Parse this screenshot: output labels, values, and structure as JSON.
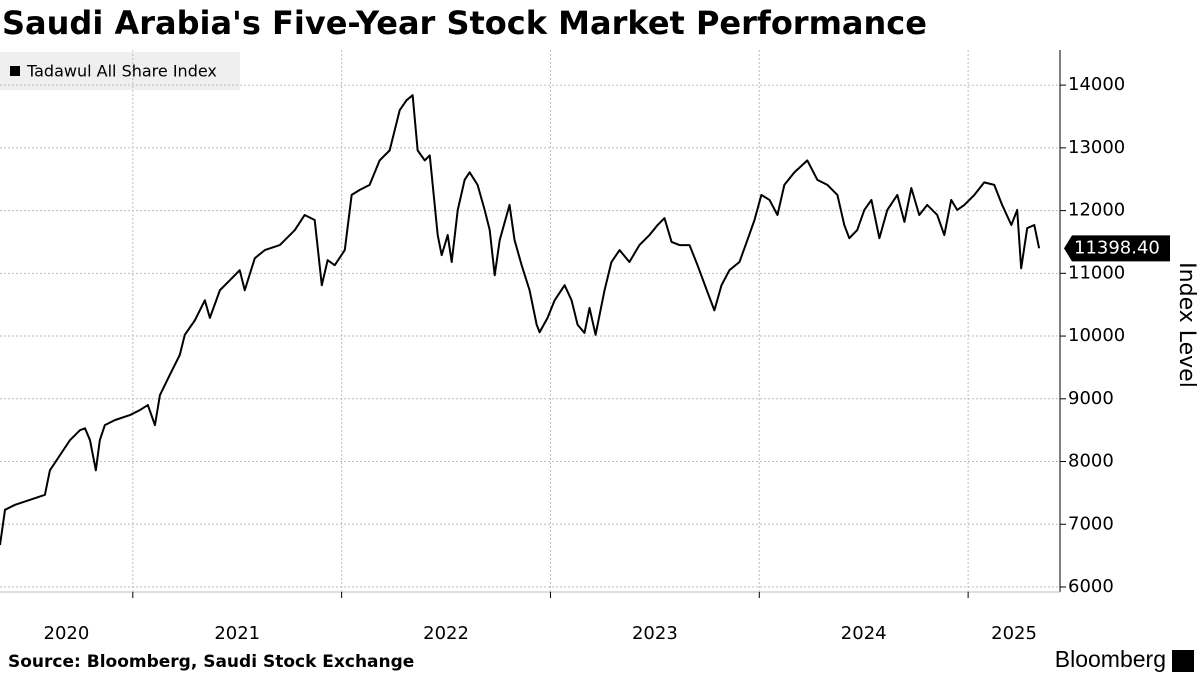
{
  "chart_data": {
    "type": "line",
    "title": "Saudi Arabia's Five-Year Stock Market Performance",
    "y_axis_label": "Index Level",
    "source": "Source: Bloomberg, Saudi Stock Exchange",
    "logo": "Bloomberg",
    "legend": "upper left",
    "grid": true,
    "ylim": [
      5920,
      14560
    ],
    "yticks": [
      6000,
      7000,
      8000,
      9000,
      10000,
      11000,
      12000,
      13000,
      14000
    ],
    "xlim": [
      2020.364,
      2025.44
    ],
    "xticks": [
      2020,
      2021,
      2022,
      2023,
      2024,
      2025
    ],
    "x": [
      2020.364,
      2020.388,
      2020.436,
      2020.508,
      2020.579,
      2020.603,
      2020.651,
      2020.699,
      2020.747,
      2020.771,
      2020.795,
      2020.823,
      2020.842,
      2020.866,
      2020.914,
      2020.986,
      2021.034,
      2021.072,
      2021.106,
      2021.13,
      2021.177,
      2021.225,
      2021.249,
      2021.297,
      2021.345,
      2021.369,
      2021.417,
      2021.465,
      2021.512,
      2021.536,
      2021.584,
      2021.632,
      2021.704,
      2021.776,
      2021.823,
      2021.871,
      2021.905,
      2021.933,
      2021.967,
      2022.015,
      2022.048,
      2022.087,
      2022.134,
      2022.182,
      2022.23,
      2022.278,
      2022.311,
      2022.34,
      2022.364,
      2022.398,
      2022.422,
      2022.46,
      2022.479,
      2022.508,
      2022.527,
      2022.556,
      2022.589,
      2022.613,
      2022.651,
      2022.685,
      2022.709,
      2022.733,
      2022.757,
      2022.804,
      2022.828,
      2022.862,
      2022.9,
      2022.934,
      2022.948,
      2022.986,
      2023.02,
      2023.068,
      2023.101,
      2023.13,
      2023.163,
      2023.187,
      2023.216,
      2023.259,
      2023.292,
      2023.331,
      2023.378,
      2023.426,
      2023.474,
      2023.513,
      2023.546,
      2023.58,
      2023.618,
      2023.666,
      2023.704,
      2023.752,
      2023.785,
      2023.819,
      2023.857,
      2023.905,
      2023.943,
      2023.977,
      2024.01,
      2024.049,
      2024.087,
      2024.12,
      2024.168,
      2024.23,
      2024.278,
      2024.326,
      2024.374,
      2024.407,
      2024.431,
      2024.469,
      2024.503,
      2024.537,
      2024.575,
      2024.613,
      2024.661,
      2024.695,
      2024.728,
      2024.766,
      2024.804,
      2024.852,
      2024.886,
      2024.919,
      2024.948,
      2024.982,
      2025.03,
      2025.077,
      2025.125,
      2025.163,
      2025.207,
      2025.235,
      2025.254,
      2025.283,
      2025.317,
      2025.34
    ],
    "series": [
      {
        "name": "Tadawul All Share Index",
        "color": "#000000",
        "last_value_label": "11398.40",
        "values": [
          6670,
          7230,
          7310,
          7390,
          7470,
          7860,
          8100,
          8340,
          8500,
          8530,
          8340,
          7860,
          8340,
          8580,
          8660,
          8740,
          8820,
          8900,
          8580,
          9060,
          9380,
          9700,
          10020,
          10250,
          10570,
          10290,
          10730,
          10890,
          11050,
          10730,
          11240,
          11370,
          11450,
          11690,
          11930,
          11850,
          10810,
          11210,
          11130,
          11370,
          12250,
          12330,
          12410,
          12800,
          12960,
          13600,
          13760,
          13840,
          12960,
          12800,
          12880,
          11610,
          11290,
          11610,
          11180,
          12010,
          12490,
          12610,
          12410,
          12010,
          11690,
          10970,
          11530,
          12090,
          11530,
          11130,
          10730,
          10180,
          10060,
          10290,
          10570,
          10810,
          10570,
          10180,
          10050,
          10450,
          10020,
          10730,
          11180,
          11370,
          11180,
          11450,
          11610,
          11770,
          11880,
          11500,
          11450,
          11450,
          11130,
          10700,
          10410,
          10810,
          11050,
          11180,
          11530,
          11850,
          12250,
          12170,
          11930,
          12410,
          12610,
          12800,
          12490,
          12410,
          12250,
          11770,
          11560,
          11690,
          12010,
          12170,
          11560,
          12010,
          12250,
          11820,
          12360,
          11930,
          12090,
          11930,
          11610,
          12170,
          12010,
          12090,
          12250,
          12450,
          12410,
          12090,
          11770,
          12010,
          11080,
          11720,
          11770,
          11398.4
        ]
      }
    ]
  }
}
